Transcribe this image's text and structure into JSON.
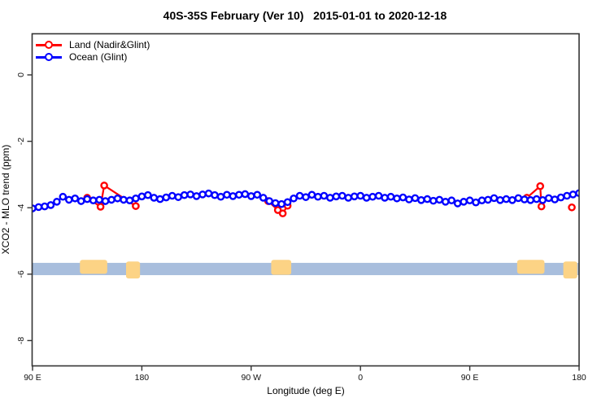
{
  "title": "40S-35S February (Ver 10)   2015-01-01 to 2020-12-18",
  "legend": {
    "items": [
      {
        "label": "Land (Nadir&Glint)",
        "color": "#ff0000"
      },
      {
        "label": "Ocean (Glint)",
        "color": "#0000ff"
      }
    ]
  },
  "colors": {
    "land_series": "#ff0000",
    "ocean_series": "#0000ff",
    "strip_ocean": "#a8bedd",
    "strip_land": "#fcd385",
    "axis": "#333333"
  },
  "chart_data": {
    "type": "line",
    "title": "40S-35S February (Ver 10)   2015-01-01 to 2020-12-18",
    "xlabel": "Longitude (deg E)",
    "ylabel": "XCO2 - MLO trend (ppm)",
    "xlim": [
      90,
      540
    ],
    "ylim": [
      -8.75,
      1.24
    ],
    "grid": false,
    "legend_position": "top-left",
    "x_ticks": [
      {
        "value": 90,
        "label": "90 E"
      },
      {
        "value": 180,
        "label": "180"
      },
      {
        "value": 270,
        "label": "90 W"
      },
      {
        "value": 360,
        "label": "0"
      },
      {
        "value": 450,
        "label": "90 E"
      },
      {
        "value": 540,
        "label": "180"
      }
    ],
    "y_ticks": [
      {
        "value": 0,
        "label": "0"
      },
      {
        "value": -2,
        "label": "-2"
      },
      {
        "value": -4,
        "label": "-4"
      },
      {
        "value": -6,
        "label": "-6"
      },
      {
        "value": -8,
        "label": "-8"
      }
    ],
    "series": [
      {
        "name": "Ocean (Glint)",
        "color": "#0000ff",
        "marker": "open-circle",
        "lon_start": 90,
        "lon_step": 5,
        "values": [
          -4.02,
          -3.98,
          -3.96,
          -3.92,
          -3.82,
          -3.67,
          -3.76,
          -3.72,
          -3.8,
          -3.74,
          -3.78,
          -3.76,
          -3.8,
          -3.76,
          -3.72,
          -3.76,
          -3.78,
          -3.72,
          -3.66,
          -3.62,
          -3.7,
          -3.74,
          -3.69,
          -3.64,
          -3.68,
          -3.62,
          -3.6,
          -3.65,
          -3.6,
          -3.57,
          -3.62,
          -3.67,
          -3.61,
          -3.65,
          -3.61,
          -3.59,
          -3.65,
          -3.61,
          -3.7,
          -3.8,
          -3.86,
          -3.89,
          -3.83,
          -3.72,
          -3.64,
          -3.68,
          -3.61,
          -3.67,
          -3.64,
          -3.7,
          -3.66,
          -3.64,
          -3.7,
          -3.66,
          -3.64,
          -3.7,
          -3.67,
          -3.64,
          -3.7,
          -3.67,
          -3.72,
          -3.69,
          -3.75,
          -3.71,
          -3.77,
          -3.74,
          -3.79,
          -3.76,
          -3.82,
          -3.78,
          -3.87,
          -3.82,
          -3.78,
          -3.84,
          -3.78,
          -3.76,
          -3.71,
          -3.77,
          -3.74,
          -3.77,
          -3.71,
          -3.75,
          -3.77,
          -3.74,
          -3.77,
          -3.71,
          -3.75,
          -3.69,
          -3.64,
          -3.6,
          -3.56
        ]
      },
      {
        "name": "Land (Nadir&Glint)",
        "color": "#ff0000",
        "marker": "open-circle",
        "segments": [
          [
            [
              135,
              -3.7
            ],
            [
              146,
              -3.97
            ],
            [
              149,
              -3.33
            ],
            [
              175,
              -3.95
            ]
          ],
          [
            [
              284,
              -3.8
            ],
            [
              292,
              -4.07
            ],
            [
              296,
              -4.17
            ],
            [
              300,
              -3.94
            ]
          ],
          [
            [
              497,
              -3.7
            ],
            [
              508,
              -3.35
            ],
            [
              509,
              -3.96
            ]
          ],
          [
            [
              534,
              -3.99
            ]
          ]
        ]
      }
    ],
    "map_strip": {
      "ocean_color": "#a8bedd",
      "land_color": "#fcd385",
      "lon_range": [
        90,
        540
      ],
      "v_top": -5.66,
      "v_bottom": -6.03,
      "land_segments": [
        {
          "lon": [
            129,
            151.5
          ],
          "v": [
            -5.57,
            -5.99
          ]
        },
        {
          "lon": [
            167,
            178.5
          ],
          "v": [
            -5.62,
            -6.13
          ]
        },
        {
          "lon": [
            286.5,
            303
          ],
          "v": [
            -5.57,
            -6.02
          ]
        },
        {
          "lon": [
            489,
            511.5
          ],
          "v": [
            -5.57,
            -5.99
          ]
        },
        {
          "lon": [
            527,
            538.5
          ],
          "v": [
            -5.62,
            -6.13
          ]
        }
      ]
    }
  }
}
